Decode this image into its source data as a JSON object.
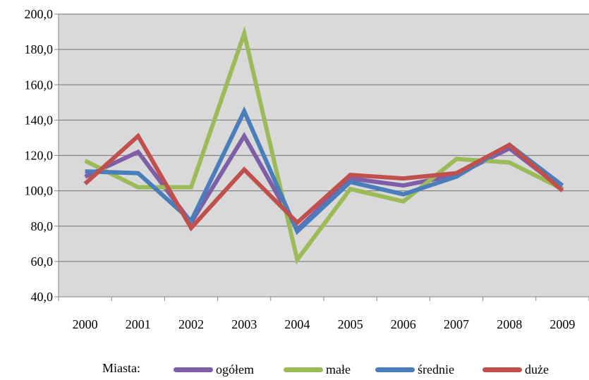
{
  "chart_data": {
    "type": "line",
    "x": [
      "2000",
      "2001",
      "2002",
      "2003",
      "2004",
      "2005",
      "2006",
      "2007",
      "2008",
      "2009"
    ],
    "ylim": [
      40,
      200
    ],
    "yticks": [
      "40,0",
      "60,0",
      "80,0",
      "100,0",
      "120,0",
      "140,0",
      "160,0",
      "180,0",
      "200,0"
    ],
    "grid": true,
    "legend_title": "Miasta:",
    "legend_position": "bottom",
    "series": [
      {
        "name": "ogółem",
        "color": "#7f5ea8",
        "values": [
          108,
          122,
          82,
          131,
          78,
          107,
          103,
          109,
          124,
          101
        ]
      },
      {
        "name": "małe",
        "color": "#9bbb59",
        "values": [
          117,
          102,
          102,
          189,
          61,
          101,
          94,
          118,
          116,
          101
        ]
      },
      {
        "name": "średnie",
        "color": "#4a7ebb",
        "values": [
          111,
          110,
          83,
          145,
          77,
          105,
          98,
          108,
          126,
          103
        ]
      },
      {
        "name": "duże",
        "color": "#c0504d",
        "values": [
          104,
          131,
          79,
          112,
          82,
          109,
          107,
          110,
          126,
          100
        ]
      }
    ]
  }
}
